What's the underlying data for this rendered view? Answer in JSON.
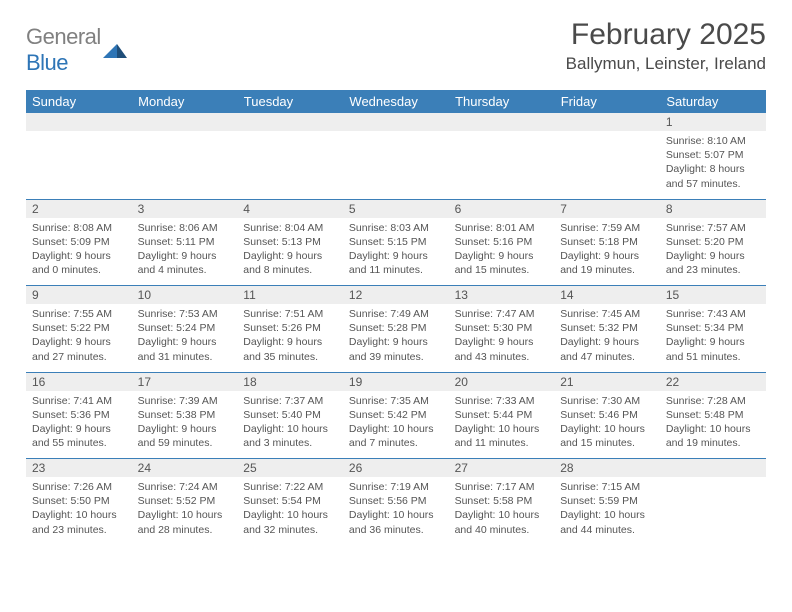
{
  "brand": {
    "name_gray": "General",
    "name_blue": "Blue"
  },
  "title": "February 2025",
  "location": "Ballymun, Leinster, Ireland",
  "colors": {
    "header_bg": "#3b7fb8",
    "header_text": "#ffffff",
    "daynum_bg": "#eeeeee",
    "body_text": "#555555",
    "divider": "#3b7fb8",
    "page_bg": "#ffffff",
    "logo_blue": "#2e75b6",
    "logo_gray": "#808080"
  },
  "weekdays": [
    "Sunday",
    "Monday",
    "Tuesday",
    "Wednesday",
    "Thursday",
    "Friday",
    "Saturday"
  ],
  "weeks": [
    [
      null,
      null,
      null,
      null,
      null,
      null,
      {
        "n": "1",
        "sunrise": "8:10 AM",
        "sunset": "5:07 PM",
        "daylight": "8 hours and 57 minutes."
      }
    ],
    [
      {
        "n": "2",
        "sunrise": "8:08 AM",
        "sunset": "5:09 PM",
        "daylight": "9 hours and 0 minutes."
      },
      {
        "n": "3",
        "sunrise": "8:06 AM",
        "sunset": "5:11 PM",
        "daylight": "9 hours and 4 minutes."
      },
      {
        "n": "4",
        "sunrise": "8:04 AM",
        "sunset": "5:13 PM",
        "daylight": "9 hours and 8 minutes."
      },
      {
        "n": "5",
        "sunrise": "8:03 AM",
        "sunset": "5:15 PM",
        "daylight": "9 hours and 11 minutes."
      },
      {
        "n": "6",
        "sunrise": "8:01 AM",
        "sunset": "5:16 PM",
        "daylight": "9 hours and 15 minutes."
      },
      {
        "n": "7",
        "sunrise": "7:59 AM",
        "sunset": "5:18 PM",
        "daylight": "9 hours and 19 minutes."
      },
      {
        "n": "8",
        "sunrise": "7:57 AM",
        "sunset": "5:20 PM",
        "daylight": "9 hours and 23 minutes."
      }
    ],
    [
      {
        "n": "9",
        "sunrise": "7:55 AM",
        "sunset": "5:22 PM",
        "daylight": "9 hours and 27 minutes."
      },
      {
        "n": "10",
        "sunrise": "7:53 AM",
        "sunset": "5:24 PM",
        "daylight": "9 hours and 31 minutes."
      },
      {
        "n": "11",
        "sunrise": "7:51 AM",
        "sunset": "5:26 PM",
        "daylight": "9 hours and 35 minutes."
      },
      {
        "n": "12",
        "sunrise": "7:49 AM",
        "sunset": "5:28 PM",
        "daylight": "9 hours and 39 minutes."
      },
      {
        "n": "13",
        "sunrise": "7:47 AM",
        "sunset": "5:30 PM",
        "daylight": "9 hours and 43 minutes."
      },
      {
        "n": "14",
        "sunrise": "7:45 AM",
        "sunset": "5:32 PM",
        "daylight": "9 hours and 47 minutes."
      },
      {
        "n": "15",
        "sunrise": "7:43 AM",
        "sunset": "5:34 PM",
        "daylight": "9 hours and 51 minutes."
      }
    ],
    [
      {
        "n": "16",
        "sunrise": "7:41 AM",
        "sunset": "5:36 PM",
        "daylight": "9 hours and 55 minutes."
      },
      {
        "n": "17",
        "sunrise": "7:39 AM",
        "sunset": "5:38 PM",
        "daylight": "9 hours and 59 minutes."
      },
      {
        "n": "18",
        "sunrise": "7:37 AM",
        "sunset": "5:40 PM",
        "daylight": "10 hours and 3 minutes."
      },
      {
        "n": "19",
        "sunrise": "7:35 AM",
        "sunset": "5:42 PM",
        "daylight": "10 hours and 7 minutes."
      },
      {
        "n": "20",
        "sunrise": "7:33 AM",
        "sunset": "5:44 PM",
        "daylight": "10 hours and 11 minutes."
      },
      {
        "n": "21",
        "sunrise": "7:30 AM",
        "sunset": "5:46 PM",
        "daylight": "10 hours and 15 minutes."
      },
      {
        "n": "22",
        "sunrise": "7:28 AM",
        "sunset": "5:48 PM",
        "daylight": "10 hours and 19 minutes."
      }
    ],
    [
      {
        "n": "23",
        "sunrise": "7:26 AM",
        "sunset": "5:50 PM",
        "daylight": "10 hours and 23 minutes."
      },
      {
        "n": "24",
        "sunrise": "7:24 AM",
        "sunset": "5:52 PM",
        "daylight": "10 hours and 28 minutes."
      },
      {
        "n": "25",
        "sunrise": "7:22 AM",
        "sunset": "5:54 PM",
        "daylight": "10 hours and 32 minutes."
      },
      {
        "n": "26",
        "sunrise": "7:19 AM",
        "sunset": "5:56 PM",
        "daylight": "10 hours and 36 minutes."
      },
      {
        "n": "27",
        "sunrise": "7:17 AM",
        "sunset": "5:58 PM",
        "daylight": "10 hours and 40 minutes."
      },
      {
        "n": "28",
        "sunrise": "7:15 AM",
        "sunset": "5:59 PM",
        "daylight": "10 hours and 44 minutes."
      },
      null
    ]
  ],
  "labels": {
    "sunrise": "Sunrise:",
    "sunset": "Sunset:",
    "daylight": "Daylight:"
  }
}
